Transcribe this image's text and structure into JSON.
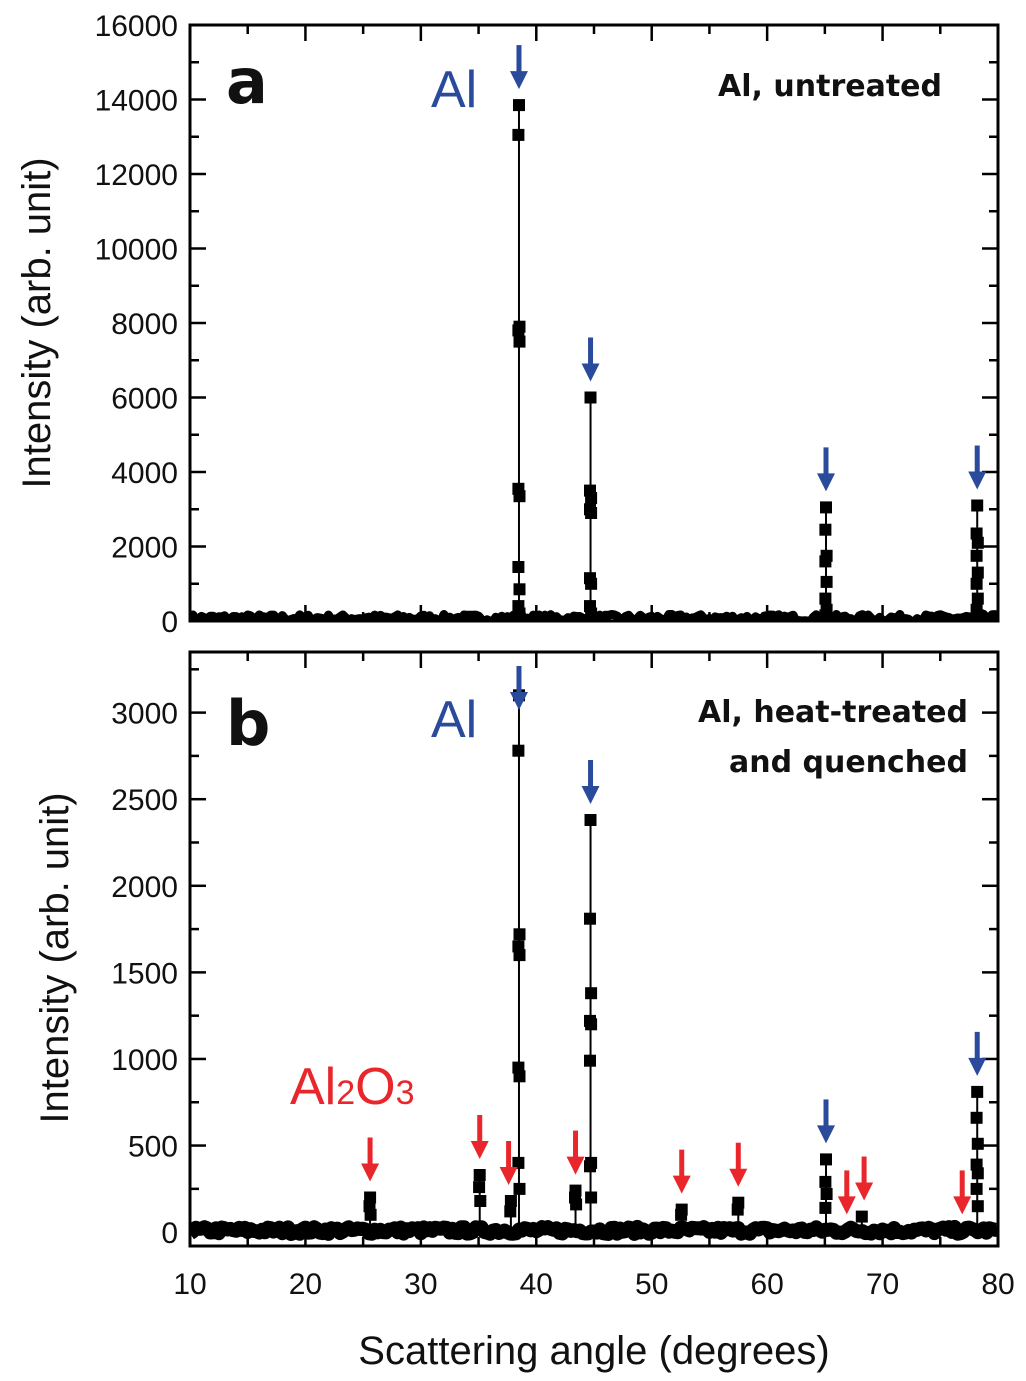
{
  "colors": {
    "al_marker": "#2a4b9b",
    "al2o3_marker": "#e8262c",
    "data": "#000000"
  },
  "chart_data": [
    {
      "type": "scatter",
      "panel": "a",
      "annotation": "Al, untreated",
      "phase_label": "Al",
      "xlabel": "",
      "ylabel": "Intensity (arb. unit)",
      "xlim": [
        10,
        80
      ],
      "ylim": [
        0,
        16000
      ],
      "y_ticks": [
        0,
        2000,
        4000,
        6000,
        8000,
        10000,
        12000,
        14000,
        16000
      ],
      "grid": false,
      "baseline": 80,
      "series": [
        {
          "peaks": [
            {
              "x": 38.5,
              "y": [
                13850,
                13050,
                7900,
                7800,
                7500,
                3550,
                3350,
                1450,
                850,
                400,
                200
              ]
            },
            {
              "x": 44.7,
              "y": [
                6000,
                3500,
                3300,
                3000,
                2900,
                1150,
                1000,
                400,
                200
              ]
            },
            {
              "x": 65.1,
              "y": [
                3050,
                2450,
                1750,
                1600,
                1050,
                600,
                300,
                150
              ]
            },
            {
              "x": 78.2,
              "y": [
                3100,
                2350,
                2100,
                1750,
                1300,
                1000,
                600,
                300,
                150
              ]
            }
          ]
        }
      ],
      "markers": {
        "al": [
          38.5,
          44.7,
          65.1,
          78.2
        ]
      }
    },
    {
      "type": "scatter",
      "panel": "b",
      "annotation": [
        "Al, heat-treated",
        "and quenched"
      ],
      "phase_label": "Al",
      "phase_label_2": {
        "main1": "Al",
        "sub1": "2",
        "main2": "O",
        "sub2": "3"
      },
      "xlabel": "Scattering angle (degrees)",
      "ylabel": "Intensity (arb. unit)",
      "xlim": [
        10,
        80
      ],
      "ylim": [
        -80,
        3350
      ],
      "x_ticks": [
        10,
        20,
        30,
        40,
        50,
        60,
        70,
        80
      ],
      "y_ticks": [
        0,
        500,
        1000,
        1500,
        2000,
        2500,
        3000
      ],
      "grid": false,
      "baseline": 10,
      "series": [
        {
          "peaks": [
            {
              "x": 25.6,
              "y": [
                200,
                150,
                100
              ]
            },
            {
              "x": 35.1,
              "y": [
                330,
                260,
                180
              ]
            },
            {
              "x": 37.8,
              "y": [
                180,
                120
              ]
            },
            {
              "x": 38.5,
              "y": [
                3100,
                2780,
                1720,
                1650,
                1600,
                950,
                900,
                400,
                250
              ]
            },
            {
              "x": 43.4,
              "y": [
                240,
                200,
                160
              ]
            },
            {
              "x": 44.7,
              "y": [
                2380,
                1810,
                1380,
                1220,
                1200,
                990,
                400,
                380,
                200
              ]
            },
            {
              "x": 52.6,
              "y": [
                130,
                100
              ]
            },
            {
              "x": 57.5,
              "y": [
                170,
                130
              ]
            },
            {
              "x": 65.1,
              "y": [
                420,
                290,
                220,
                140
              ]
            },
            {
              "x": 68.2,
              "y": [
                90
              ]
            },
            {
              "x": 78.2,
              "y": [
                810,
                660,
                510,
                390,
                340,
                250,
                150
              ]
            }
          ]
        }
      ],
      "markers": {
        "al": [
          38.5,
          44.7,
          65.1,
          78.2
        ],
        "al2o3": [
          25.6,
          35.1,
          37.6,
          43.4,
          52.6,
          57.5,
          66.9,
          68.4,
          76.9
        ]
      }
    }
  ]
}
